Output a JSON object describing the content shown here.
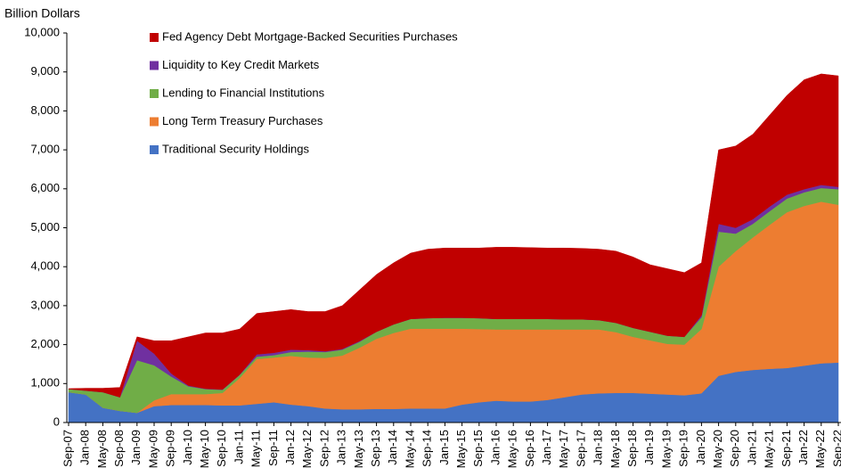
{
  "chart_data": {
    "type": "stacked_area",
    "y_label": "Billion Dollars",
    "categories": [
      "Sep-07",
      "Jan-08",
      "May-08",
      "Sep-08",
      "Jan-09",
      "May-09",
      "Sep-09",
      "Jan-10",
      "May-10",
      "Sep-10",
      "Jan-11",
      "May-11",
      "Sep-11",
      "Jan-12",
      "May-12",
      "Sep-12",
      "Jan-13",
      "May-13",
      "Sep-13",
      "Jan-14",
      "May-14",
      "Sep-14",
      "Jan-15",
      "May-15",
      "Sep-15",
      "Jan-16",
      "May-16",
      "Sep-16",
      "Jan-17",
      "May-17",
      "Sep-17",
      "Jan-18",
      "May-18",
      "Sep-18",
      "Jan-19",
      "May-19",
      "Sep-19",
      "Jan-20",
      "May-20",
      "Sep-20",
      "Jan-21",
      "May-21",
      "Sep-21",
      "Jan-22",
      "May-22",
      "Sep-22"
    ],
    "series": [
      {
        "name": "Traditional Security Holdings",
        "color": "#4472c4",
        "values": [
          780,
          720,
          380,
          300,
          250,
          420,
          450,
          450,
          450,
          440,
          440,
          480,
          520,
          460,
          420,
          360,
          340,
          340,
          350,
          350,
          360,
          360,
          360,
          460,
          520,
          560,
          540,
          540,
          580,
          650,
          720,
          750,
          760,
          760,
          740,
          720,
          700,
          750,
          1200,
          1300,
          1350,
          1380,
          1400,
          1460,
          1520,
          1540
        ]
      },
      {
        "name": "Long Term Treasury Purchases",
        "color": "#ed7d31",
        "values": [
          0,
          0,
          0,
          0,
          0,
          150,
          280,
          280,
          280,
          320,
          700,
          1150,
          1150,
          1250,
          1250,
          1300,
          1380,
          1580,
          1800,
          1950,
          2050,
          2050,
          2050,
          1950,
          1880,
          1830,
          1850,
          1850,
          1810,
          1740,
          1670,
          1640,
          1560,
          1440,
          1370,
          1300,
          1300,
          1650,
          2800,
          3100,
          3400,
          3700,
          4000,
          4100,
          4150,
          4050
        ]
      },
      {
        "name": "Lending to Financial Institutions",
        "color": "#70ad47",
        "values": [
          80,
          100,
          400,
          350,
          1350,
          900,
          450,
          200,
          130,
          80,
          80,
          60,
          60,
          100,
          150,
          150,
          150,
          150,
          180,
          220,
          250,
          270,
          280,
          280,
          280,
          270,
          270,
          270,
          270,
          260,
          260,
          240,
          240,
          230,
          220,
          210,
          200,
          300,
          900,
          450,
          350,
          350,
          350,
          350,
          350,
          400
        ]
      },
      {
        "name": "Liquidity to Key Credit Markets",
        "color": "#7030a0",
        "values": [
          0,
          0,
          0,
          0,
          500,
          300,
          80,
          20,
          10,
          10,
          10,
          60,
          60,
          60,
          40,
          20,
          20,
          20,
          0,
          0,
          0,
          0,
          0,
          0,
          0,
          0,
          0,
          0,
          0,
          0,
          0,
          0,
          0,
          0,
          0,
          0,
          0,
          50,
          200,
          150,
          120,
          120,
          100,
          80,
          80,
          60
        ]
      },
      {
        "name": "Fed Agency Debt Mortgage-Backed Securities Purchases",
        "color": "#c00000",
        "values": [
          10,
          60,
          100,
          250,
          100,
          330,
          840,
          1250,
          1430,
          1450,
          1170,
          1050,
          1060,
          1030,
          990,
          1020,
          1110,
          1310,
          1470,
          1580,
          1690,
          1770,
          1790,
          1790,
          1800,
          1840,
          1840,
          1830,
          1820,
          1830,
          1820,
          1820,
          1840,
          1820,
          1720,
          1720,
          1650,
          1350,
          1900,
          2100,
          2180,
          2350,
          2550,
          2810,
          2850,
          2850
        ]
      }
    ],
    "ylim": [
      0,
      10000
    ],
    "yticks": [
      0,
      {
        "value": 1000,
        "label": "1,000"
      },
      {
        "value": 2000,
        "label": "2,000"
      },
      {
        "value": 3000,
        "label": "3,000"
      },
      {
        "value": 4000,
        "label": "4,000"
      },
      {
        "value": 5000,
        "label": "5,000"
      },
      {
        "value": 6000,
        "label": "6,000"
      },
      {
        "value": 7000,
        "label": "7,000"
      },
      {
        "value": 8000,
        "label": "8,000"
      },
      {
        "value": 9000,
        "label": "9,000"
      },
      {
        "value": 10000,
        "label": "10,000"
      }
    ],
    "legend": "top-left"
  }
}
